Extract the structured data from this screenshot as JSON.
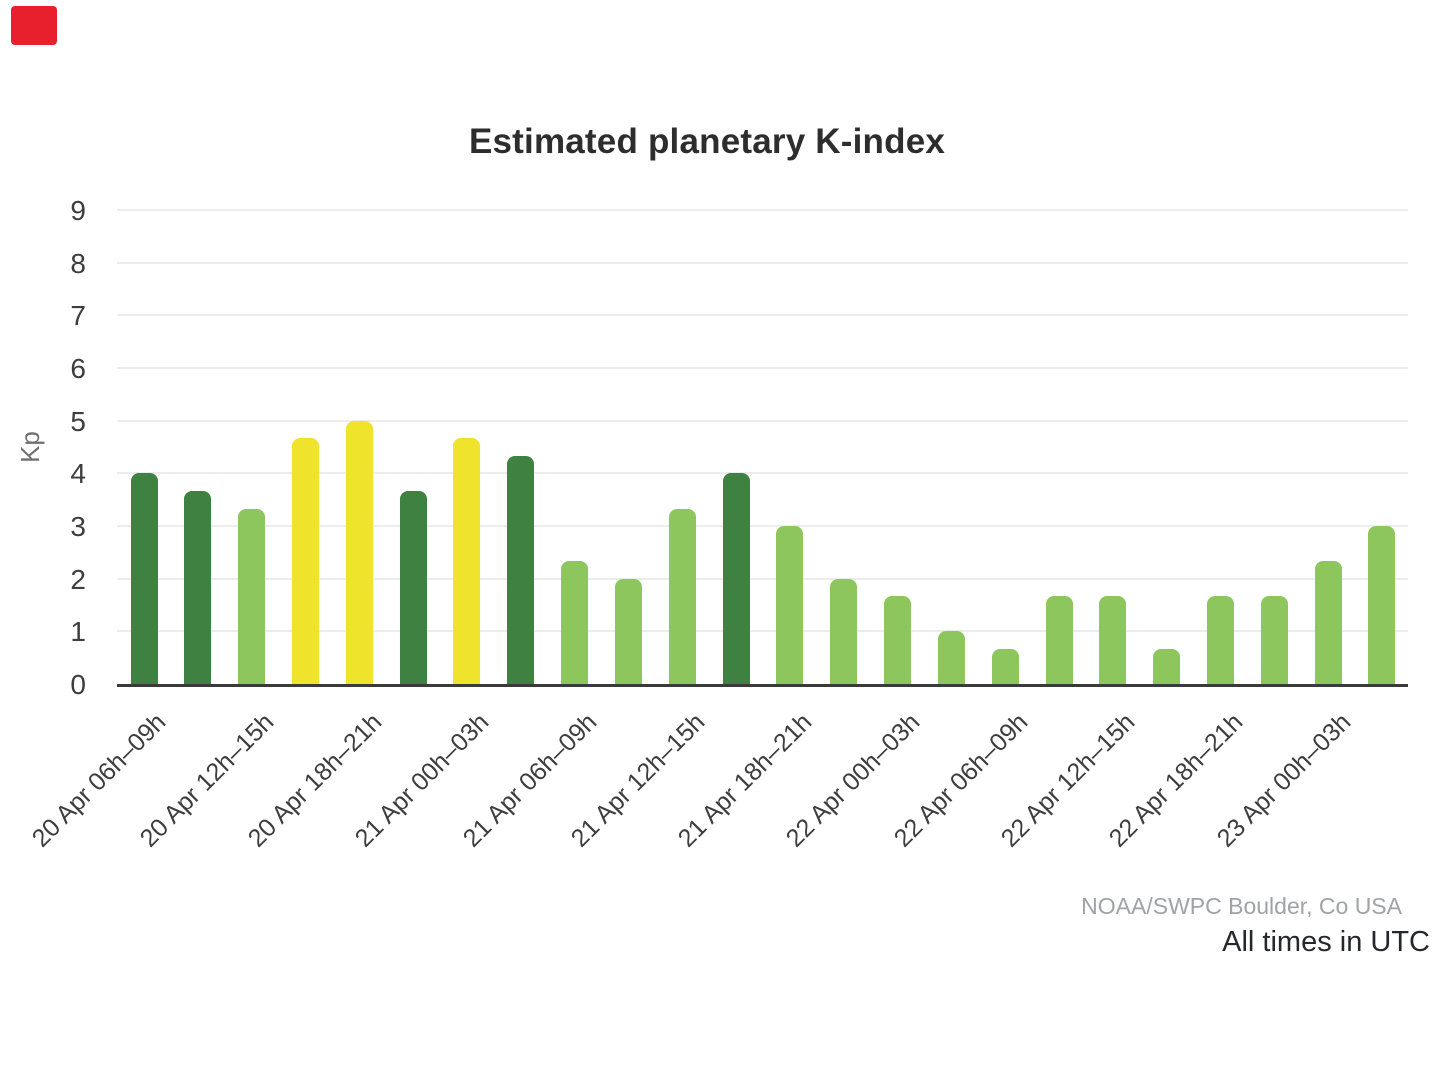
{
  "indicator": {
    "color": "#e8202e"
  },
  "chart_data": {
    "type": "bar",
    "title": "Estimated planetary K-index",
    "ylabel": "Kp",
    "ylim": [
      0,
      9
    ],
    "y_ticks": [
      0,
      1,
      2,
      3,
      4,
      5,
      6,
      7,
      8,
      9
    ],
    "grid": "horizontal",
    "grid_color": "#ececec",
    "axis_color": "#3b3b3b",
    "palette": {
      "light_green": "#8cc65c",
      "dark_green": "#3f8140",
      "yellow": "#f0e32b"
    },
    "bars": [
      {
        "value": 4.0,
        "color": "dark_green"
      },
      {
        "value": 3.67,
        "color": "dark_green"
      },
      {
        "value": 3.33,
        "color": "light_green"
      },
      {
        "value": 4.67,
        "color": "yellow"
      },
      {
        "value": 5.0,
        "color": "yellow"
      },
      {
        "value": 3.67,
        "color": "dark_green"
      },
      {
        "value": 4.67,
        "color": "yellow"
      },
      {
        "value": 4.33,
        "color": "dark_green"
      },
      {
        "value": 2.33,
        "color": "light_green"
      },
      {
        "value": 2.0,
        "color": "light_green"
      },
      {
        "value": 3.33,
        "color": "light_green"
      },
      {
        "value": 4.0,
        "color": "dark_green"
      },
      {
        "value": 3.0,
        "color": "light_green"
      },
      {
        "value": 2.0,
        "color": "light_green"
      },
      {
        "value": 1.67,
        "color": "light_green"
      },
      {
        "value": 1.0,
        "color": "light_green"
      },
      {
        "value": 0.67,
        "color": "light_green"
      },
      {
        "value": 1.67,
        "color": "light_green"
      },
      {
        "value": 1.67,
        "color": "light_green"
      },
      {
        "value": 0.67,
        "color": "light_green"
      },
      {
        "value": 1.67,
        "color": "light_green"
      },
      {
        "value": 1.67,
        "color": "light_green"
      },
      {
        "value": 2.33,
        "color": "light_green"
      },
      {
        "value": 3.0,
        "color": "light_green"
      }
    ],
    "label_every_n_bars": 2,
    "x_tick_labels": [
      "20 Apr 06h–09h",
      "20 Apr 12h–15h",
      "20 Apr 18h–21h",
      "21 Apr 00h–03h",
      "21 Apr 06h–09h",
      "21 Apr 12h–15h",
      "21 Apr 18h–21h",
      "22 Apr 00h–03h",
      "22 Apr 06h–09h",
      "22 Apr 12h–15h",
      "22 Apr 18h–21h",
      "23 Apr 00h–03h"
    ]
  },
  "footer": {
    "credit": "NOAA/SWPC Boulder, Co USA",
    "note": "All times in UTC"
  }
}
